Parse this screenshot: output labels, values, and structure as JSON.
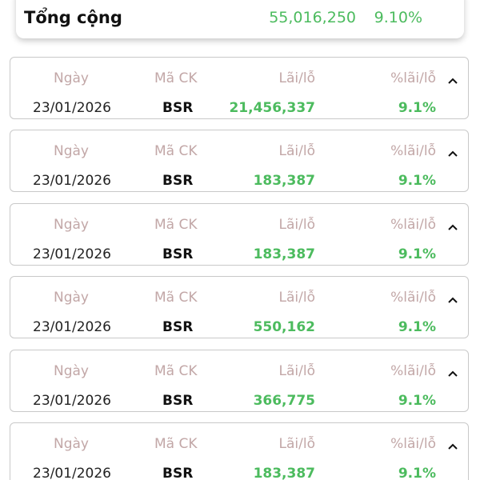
{
  "summary": {
    "label": "Tổng cộng",
    "total": "55,016,250",
    "percent": "9.10%"
  },
  "headers": {
    "date": "Ngày",
    "code": "Mã CK",
    "profit_loss": "Lãi/lỗ",
    "percent": "%lãi/lỗ"
  },
  "rows": [
    {
      "date": "23/01/2026",
      "code": "BSR",
      "profit_loss": "21,456,337",
      "percent": "9.1%"
    },
    {
      "date": "23/01/2026",
      "code": "BSR",
      "profit_loss": "183,387",
      "percent": "9.1%"
    },
    {
      "date": "23/01/2026",
      "code": "BSR",
      "profit_loss": "183,387",
      "percent": "9.1%"
    },
    {
      "date": "23/01/2026",
      "code": "BSR",
      "profit_loss": "550,162",
      "percent": "9.1%"
    },
    {
      "date": "23/01/2026",
      "code": "BSR",
      "profit_loss": "366,775",
      "percent": "9.1%"
    },
    {
      "date": "23/01/2026",
      "code": "BSR",
      "profit_loss": "183,387",
      "percent": "9.1%"
    }
  ],
  "colors": {
    "positive": "#4cbb5e",
    "header_text": "#c2a7a7"
  },
  "icons": {
    "collapse": "chevron-up-icon"
  }
}
